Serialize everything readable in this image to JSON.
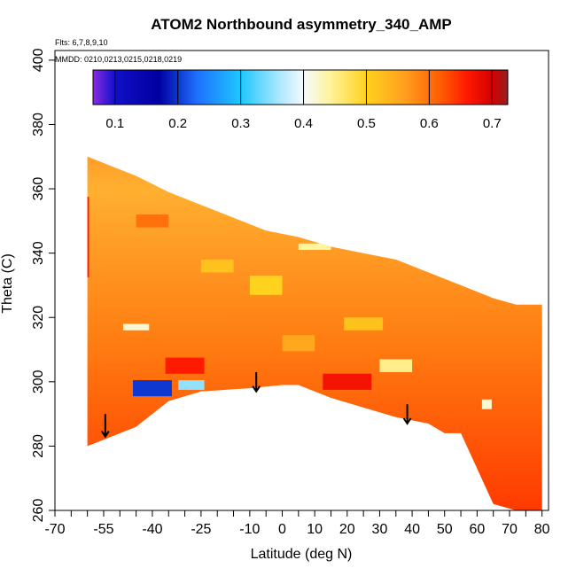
{
  "chart_data": {
    "type": "heatmap",
    "title": "ATOM2 Northbound asymmetry_340_AMP",
    "flights_note": "Flts: 6,7,8,9,10",
    "dates_note": "MMDD: 0210,0213,0215,0218,0219",
    "xlabel": "Latitude (deg N)",
    "ylabel": "Theta (C)",
    "xlim": [
      -70,
      82
    ],
    "ylim": [
      260,
      403
    ],
    "x_ticks": [
      -70,
      -55,
      -40,
      -25,
      -10,
      0,
      10,
      20,
      30,
      40,
      50,
      60,
      70,
      80
    ],
    "x_tick_labels": [
      "-70",
      "-55",
      "-40",
      "-25",
      "-10",
      "0",
      "10",
      "20",
      "30",
      "40",
      "50",
      "60",
      "70",
      "80"
    ],
    "x_minor_ticks": [
      -65,
      -60,
      -50,
      -45,
      -35,
      -30,
      -20,
      -15,
      -5,
      5,
      15,
      25,
      35,
      45,
      55,
      65,
      75
    ],
    "y_ticks": [
      260,
      280,
      300,
      320,
      340,
      360,
      380,
      400
    ],
    "y_tick_labels": [
      "260",
      "280",
      "300",
      "320",
      "340",
      "360",
      "380",
      "400"
    ],
    "colorbar": {
      "range": [
        0.065,
        0.725
      ],
      "ticks": [
        0.1,
        0.2,
        0.3,
        0.4,
        0.5,
        0.6,
        0.7
      ],
      "tick_labels": [
        "0.1",
        "0.2",
        "0.3",
        "0.4",
        "0.5",
        "0.6",
        "0.7"
      ],
      "stops": [
        {
          "v": 0.065,
          "color": "#8a2be2"
        },
        {
          "v": 0.1,
          "color": "#1010c8"
        },
        {
          "v": 0.17,
          "color": "#0000a0"
        },
        {
          "v": 0.23,
          "color": "#1e6fff"
        },
        {
          "v": 0.3,
          "color": "#1ec8ff"
        },
        {
          "v": 0.36,
          "color": "#a8e6ff"
        },
        {
          "v": 0.4,
          "color": "#f4fbff"
        },
        {
          "v": 0.44,
          "color": "#fff4a0"
        },
        {
          "v": 0.5,
          "color": "#ffd21e"
        },
        {
          "v": 0.56,
          "color": "#ffa01e"
        },
        {
          "v": 0.62,
          "color": "#ff5a00"
        },
        {
          "v": 0.66,
          "color": "#ff1a00"
        },
        {
          "v": 0.7,
          "color": "#d40000"
        },
        {
          "v": 0.725,
          "color": "#962020"
        }
      ]
    },
    "domain_top": [
      [
        -60,
        370
      ],
      [
        -55,
        368
      ],
      [
        -45,
        364
      ],
      [
        -35,
        359
      ],
      [
        -25,
        355
      ],
      [
        -15,
        351
      ],
      [
        -5,
        347
      ],
      [
        5,
        345
      ],
      [
        15,
        342
      ],
      [
        25,
        340
      ],
      [
        35,
        338
      ],
      [
        45,
        334
      ],
      [
        55,
        330
      ],
      [
        65,
        326
      ],
      [
        72,
        324
      ],
      [
        80,
        324
      ]
    ],
    "domain_bottom": [
      [
        -60,
        280
      ],
      [
        -55,
        282
      ],
      [
        -45,
        286
      ],
      [
        -35,
        294
      ],
      [
        -25,
        297
      ],
      [
        -10,
        298
      ],
      [
        0,
        299
      ],
      [
        5,
        299
      ],
      [
        15,
        295
      ],
      [
        25,
        292
      ],
      [
        35,
        289
      ],
      [
        45,
        287
      ],
      [
        50,
        284
      ],
      [
        55,
        284
      ],
      [
        65,
        262
      ],
      [
        72,
        260
      ],
      [
        80,
        260
      ]
    ],
    "anomalies": [
      {
        "lat": -40,
        "theta": 298,
        "value": 0.2,
        "w": 12,
        "h": 5
      },
      {
        "lat": -28,
        "theta": 299,
        "value": 0.35,
        "w": 8,
        "h": 3
      },
      {
        "lat": 63,
        "theta": 293,
        "value": 0.42,
        "w": 3,
        "h": 3
      },
      {
        "lat": -45,
        "theta": 317,
        "value": 0.42,
        "w": 8,
        "h": 2
      },
      {
        "lat": 10,
        "theta": 342,
        "value": 0.44,
        "w": 10,
        "h": 2
      },
      {
        "lat": 35,
        "theta": 305,
        "value": 0.45,
        "w": 10,
        "h": 4
      },
      {
        "lat": -20,
        "theta": 336,
        "value": 0.52,
        "w": 10,
        "h": 4
      },
      {
        "lat": 25,
        "theta": 318,
        "value": 0.52,
        "w": 12,
        "h": 4
      },
      {
        "lat": -5,
        "theta": 330,
        "value": 0.5,
        "w": 10,
        "h": 6
      },
      {
        "lat": 5,
        "theta": 312,
        "value": 0.55,
        "w": 10,
        "h": 5
      },
      {
        "lat": -40,
        "theta": 350,
        "value": 0.6,
        "w": 10,
        "h": 4
      },
      {
        "lat": -62,
        "theta": 345,
        "value": 0.66,
        "w": 5,
        "h": 25
      },
      {
        "lat": -30,
        "theta": 305,
        "value": 0.66,
        "w": 12,
        "h": 5
      },
      {
        "lat": 20,
        "theta": 300,
        "value": 0.67,
        "w": 15,
        "h": 5
      },
      {
        "lat": -62,
        "theta": 290,
        "value": 0.55,
        "w": 4,
        "h": 6
      }
    ],
    "arrows": [
      {
        "lat": -54.5,
        "theta_top": 290,
        "theta_bottom": 283
      },
      {
        "lat": -8,
        "theta_top": 303,
        "theta_bottom": 297
      },
      {
        "lat": 38.5,
        "theta_top": 293,
        "theta_bottom": 287
      }
    ]
  }
}
